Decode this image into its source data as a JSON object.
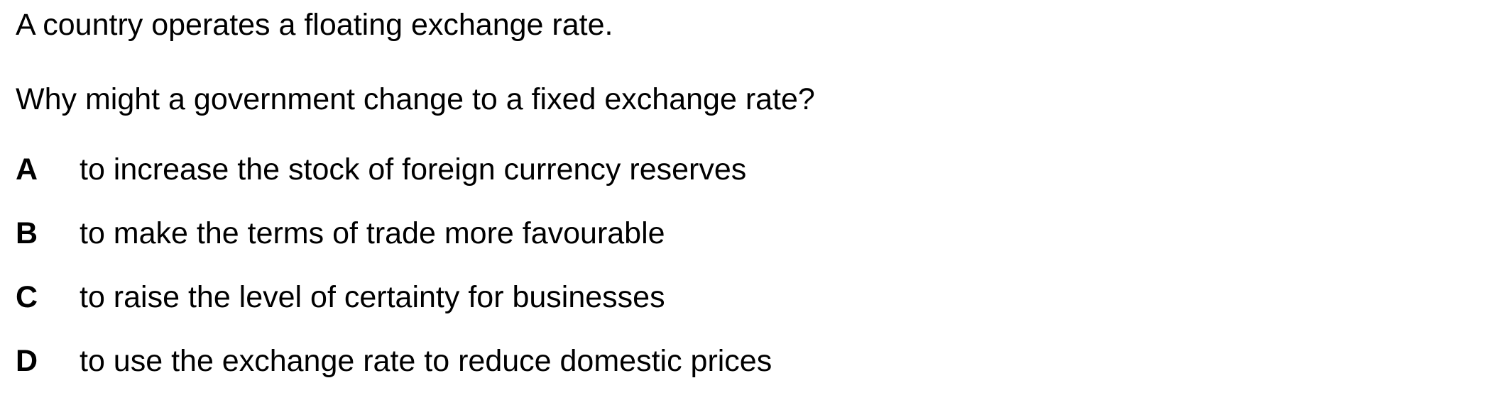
{
  "question": {
    "stem_line_1": "A country operates a floating exchange rate.",
    "stem_line_2": "Why might a government change to a fixed exchange rate?",
    "options": [
      {
        "letter": "A",
        "text": "to increase the stock of foreign currency reserves"
      },
      {
        "letter": "B",
        "text": "to make the terms of trade more favourable"
      },
      {
        "letter": "C",
        "text": "to raise the level of certainty for businesses"
      },
      {
        "letter": "D",
        "text": "to use the exchange rate to reduce domestic prices"
      }
    ]
  }
}
